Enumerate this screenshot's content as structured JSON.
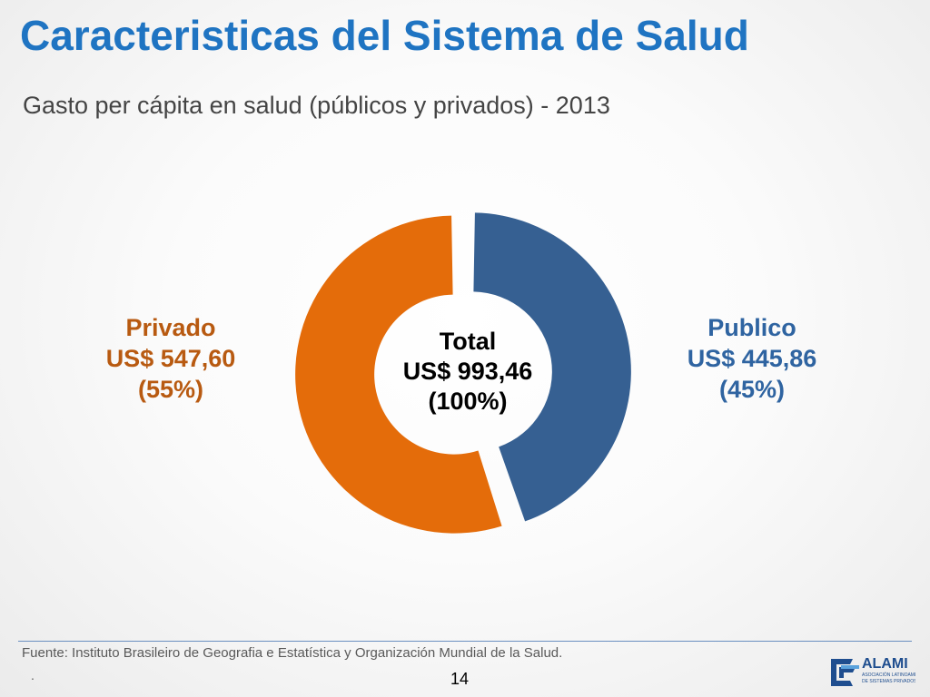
{
  "slide": {
    "title": "Caracteristicas del Sistema de Salud",
    "subtitle": "Gasto per cápita en salud (públicos y privados) - 2013",
    "source": "Fuente: Instituto Brasileiro de Geografia e Estatística y Organización Mundial de la Salud.",
    "dot": ".",
    "page_number": "14",
    "logo": {
      "name": "ALAMI",
      "tagline": [
        "ASOCIACIÓN LATINOAMERICANA",
        "DE SISTEMAS PRIVADOS DE SALUD"
      ]
    }
  },
  "chart_data": {
    "type": "pie",
    "subtype": "donut",
    "series": [
      {
        "name": "Publico",
        "value_text": "US$ 445,86",
        "percent_text": "(45%)",
        "value": 445.86,
        "percent": 45,
        "color": "#366092"
      },
      {
        "name": "Privado",
        "value_text": "US$ 547,60",
        "percent_text": "(55%)",
        "value": 547.6,
        "percent": 55,
        "color": "#e46c0a"
      }
    ],
    "total": {
      "label": "Total",
      "value_text": "US$ 993,46",
      "percent_text": "(100%)",
      "value": 993.46
    },
    "label_colors": {
      "Privado": "#b85a11",
      "Publico": "#2f64a1"
    }
  }
}
